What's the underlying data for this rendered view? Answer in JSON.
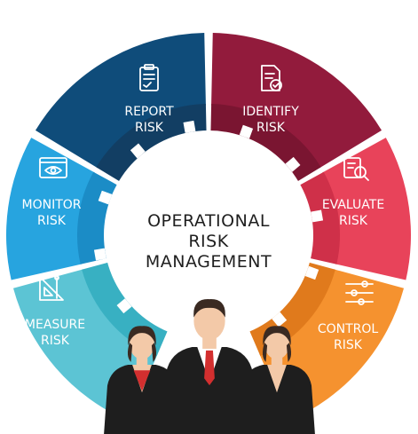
{
  "center": {
    "line1": "OPERATIONAL",
    "line2": "RISK",
    "line3": "MANAGEMENT"
  },
  "segments": [
    {
      "key": "report",
      "line1": "REPORT",
      "line2": "RISK",
      "color": "#0f4c7a",
      "inner": "#123e63",
      "icon": "report-clipboard-icon"
    },
    {
      "key": "identify",
      "line1": "IDENTIFY",
      "line2": "RISK",
      "color": "#921b3c",
      "inner": "#7a1531",
      "icon": "identify-document-check-icon"
    },
    {
      "key": "evaluate",
      "line1": "EVALUATE",
      "line2": "RISK",
      "color": "#e8435a",
      "inner": "#cf3049",
      "icon": "evaluate-magnifier-icon"
    },
    {
      "key": "control",
      "line1": "CONTROL",
      "line2": "RISK",
      "color": "#f5922f",
      "inner": "#e07a1c",
      "icon": "control-sliders-icon"
    },
    {
      "key": "measure",
      "line1": "MEASURE",
      "line2": "RISK",
      "color": "#5cc4d4",
      "inner": "#38b0c2",
      "icon": "measure-ruler-compass-icon"
    },
    {
      "key": "monitor",
      "line1": "MONITOR",
      "line2": "RISK",
      "color": "#27a4df",
      "inner": "#1b8cc6",
      "icon": "monitor-eye-screen-icon"
    }
  ],
  "people": {
    "suit_color": "#1e1e1e",
    "skin_color": "#f3c9a8",
    "hair_color": "#3a2a22",
    "tie_color": "#d32f2f"
  }
}
